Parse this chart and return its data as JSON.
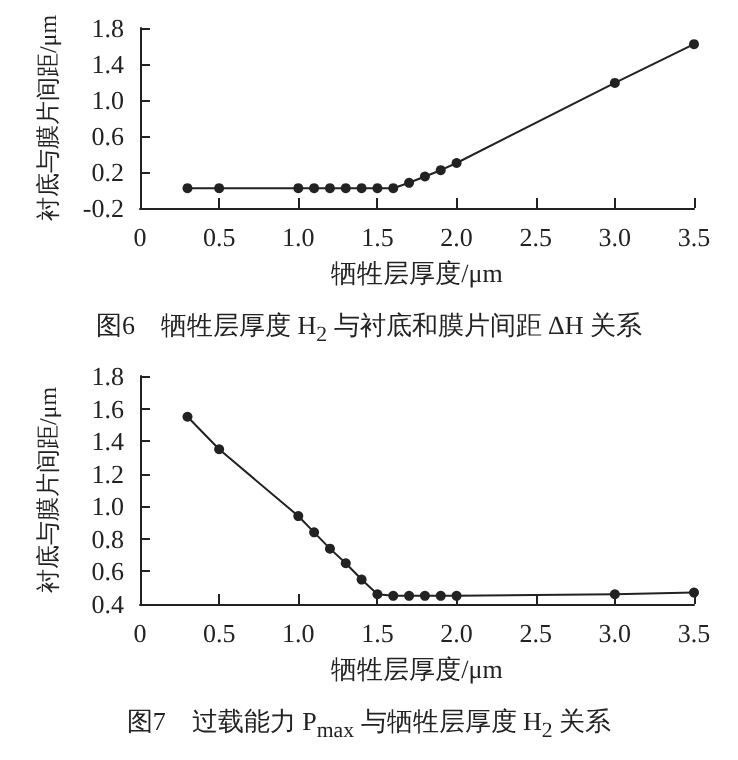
{
  "chart_data": [
    {
      "type": "line",
      "xlabel": "牺牲层厚度/μm",
      "ylabel": "衬底与膜片间距/μm",
      "annotations": [
        "图6　牺牲层厚度 H$_{2}$ 与衬底和膜片间距 ΔH 关系"
      ],
      "x": [
        0.3,
        0.5,
        1.0,
        1.1,
        1.2,
        1.3,
        1.4,
        1.5,
        1.6,
        1.7,
        1.8,
        1.9,
        2.0,
        3.0,
        3.5
      ],
      "series": [
        {
          "color": "#222222",
          "values": [
            0.02,
            0.02,
            0.02,
            0.02,
            0.02,
            0.02,
            0.02,
            0.02,
            0.02,
            0.08,
            0.15,
            0.22,
            0.3,
            1.19,
            1.62
          ]
        }
      ],
      "xlim": [
        0,
        3.5
      ],
      "xticks": [
        0,
        0.5,
        {
          "value": 1,
          "label": "1.0"
        },
        1.5,
        {
          "value": 2,
          "label": "2.0"
        },
        2.5,
        {
          "value": 3,
          "label": "3.0"
        },
        3.5
      ],
      "ylim": [
        -0.2,
        1.8
      ],
      "yticks": [
        -0.2,
        0.2,
        0.6,
        {
          "value": 1,
          "label": "1.0"
        },
        1.4,
        1.8
      ],
      "grid": false,
      "marker": "circle",
      "line_style": "solid"
    },
    {
      "type": "line",
      "xlabel": "牺牲层厚度/μm",
      "ylabel": "衬底与膜片间距/μm",
      "annotations": [
        "图7　过载能力 P$_{max}$ 与牺牲层厚度 H$_{2}$ 关系"
      ],
      "x": [
        0.3,
        0.5,
        1.0,
        1.1,
        1.2,
        1.3,
        1.4,
        1.5,
        1.6,
        1.7,
        1.8,
        1.9,
        2.0,
        3.0,
        3.5
      ],
      "series": [
        {
          "color": "#222222",
          "values": [
            1.55,
            1.35,
            0.94,
            0.84,
            0.74,
            0.65,
            0.55,
            0.46,
            0.45,
            0.45,
            0.45,
            0.45,
            0.45,
            0.46,
            0.47
          ]
        }
      ],
      "xlim": [
        0,
        3.5
      ],
      "xticks": [
        0,
        0.5,
        {
          "value": 1,
          "label": "1.0"
        },
        1.5,
        {
          "value": 2,
          "label": "2.0"
        },
        2.5,
        {
          "value": 3,
          "label": "3.0"
        },
        3.5
      ],
      "ylim": [
        0.4,
        1.8
      ],
      "yticks": [
        0.4,
        0.6,
        0.8,
        {
          "value": 1,
          "label": "1.0"
        },
        1.2,
        1.4,
        1.6,
        1.8
      ],
      "grid": false,
      "marker": "circle",
      "line_style": "solid"
    }
  ]
}
